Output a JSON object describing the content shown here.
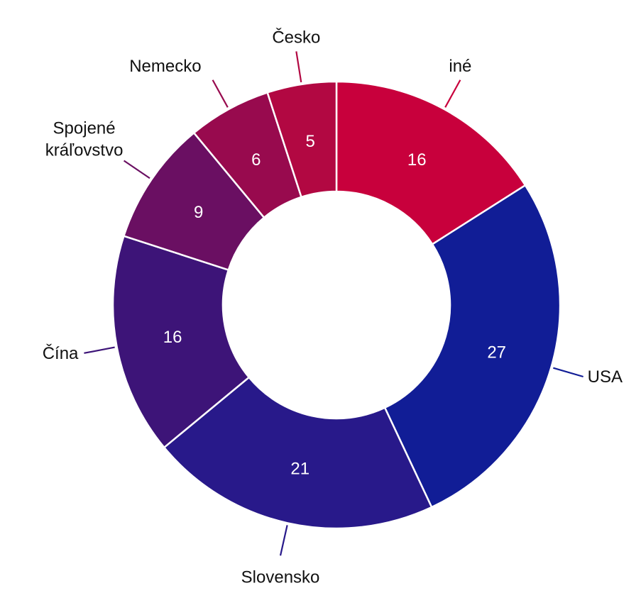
{
  "chart_data": {
    "type": "pie",
    "variant": "donut",
    "title": "",
    "slices": [
      {
        "label": "iné",
        "value": 16,
        "color": "#C8003C"
      },
      {
        "label": "USA",
        "value": 27,
        "color": "#111D96"
      },
      {
        "label": "Slovensko",
        "value": 21,
        "color": "#28198A"
      },
      {
        "label": "Čína",
        "value": 16,
        "color": "#3D1478"
      },
      {
        "label": "Spojené kráľovstvo",
        "label_lines": [
          "Spojené",
          "kráľovstvo"
        ],
        "value": 9,
        "color": "#6A0F62"
      },
      {
        "label": "Nemecko",
        "value": 6,
        "color": "#980A4E"
      },
      {
        "label": "Česko",
        "value": 5,
        "color": "#B20842"
      }
    ],
    "legend": "none"
  }
}
